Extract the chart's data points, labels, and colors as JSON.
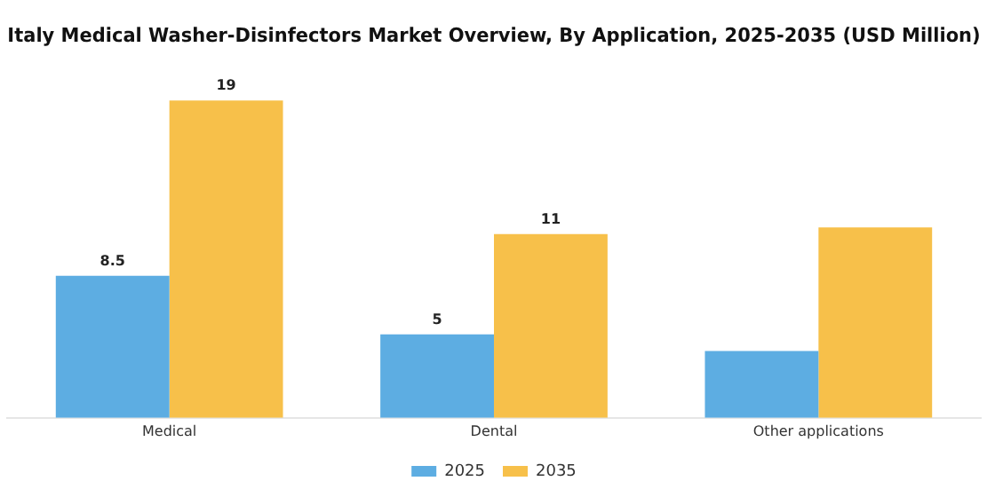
{
  "chart_data": {
    "type": "bar",
    "title": "Italy Medical Washer-Disinfectors Market Overview, By Application, 2025-2035 (USD Million)",
    "categories": [
      "Medical",
      "Dental",
      "Other applications"
    ],
    "series": [
      {
        "name": "2025",
        "color": "#5dade2",
        "values": [
          8.5,
          5,
          4.0
        ],
        "value_labels": [
          "8.5",
          "5",
          null
        ]
      },
      {
        "name": "2035",
        "color": "#f7c04a",
        "values": [
          19,
          11,
          11.4
        ],
        "value_labels": [
          "19",
          "11",
          null
        ]
      }
    ],
    "legend": "bottom",
    "grid": false
  }
}
